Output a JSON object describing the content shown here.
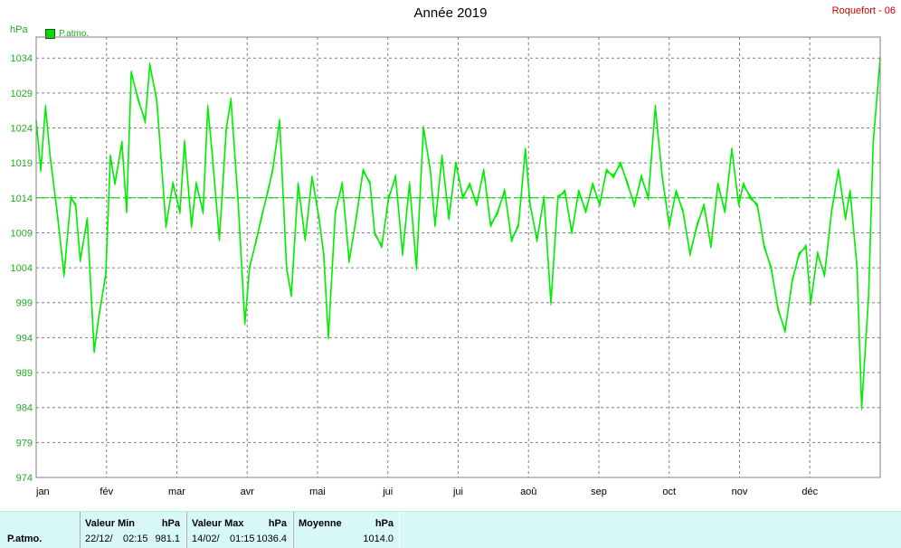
{
  "header": {
    "title": "Année 2019",
    "station": "Roquefort - 06",
    "unit": "hPa",
    "legend": "P.atmo."
  },
  "colors": {
    "series": "#00ee00",
    "mean": "#00cc00",
    "grid": "#808080",
    "axis_text": "#22aa22"
  },
  "footer": {
    "row_label": "P.atmo.",
    "min": {
      "header": "Valeur Min",
      "unit": "hPa",
      "date": "22/12/",
      "time": "02:15",
      "value": "981.1"
    },
    "max": {
      "header": "Valeur Max",
      "unit": "hPa",
      "date": "14/02/",
      "time": "01:15",
      "value": "1036.4"
    },
    "mean": {
      "header": "Moyenne",
      "unit": "hPa",
      "value": "1014.0"
    }
  },
  "chart_data": {
    "type": "line",
    "title": "Année 2019",
    "ylabel": "hPa",
    "ylim": [
      974,
      1037
    ],
    "yticks": [
      974,
      979,
      984,
      989,
      994,
      999,
      1004,
      1009,
      1014,
      1019,
      1024,
      1029,
      1034
    ],
    "xticks": [
      "jan",
      "fév",
      "mar",
      "avr",
      "mai",
      "jui",
      "jui",
      "aoû",
      "sep",
      "oct",
      "nov",
      "déc"
    ],
    "xlim": [
      1,
      365
    ],
    "mean": 1014.0,
    "grid": true,
    "legend_position": "top-left",
    "series": [
      {
        "name": "P.atmo.",
        "x": [
          1,
          3,
          5,
          7,
          10,
          13,
          16,
          18,
          20,
          23,
          26,
          28,
          31,
          33,
          35,
          38,
          40,
          42,
          45,
          48,
          50,
          53,
          55,
          57,
          60,
          63,
          65,
          68,
          70,
          73,
          75,
          77,
          80,
          83,
          85,
          88,
          91,
          93,
          96,
          98,
          101,
          103,
          106,
          109,
          111,
          114,
          117,
          120,
          123,
          125,
          127,
          130,
          133,
          136,
          139,
          142,
          145,
          147,
          150,
          153,
          156,
          159,
          162,
          165,
          168,
          171,
          173,
          176,
          179,
          182,
          185,
          188,
          191,
          194,
          197,
          200,
          203,
          206,
          209,
          212,
          214,
          217,
          220,
          223,
          226,
          229,
          232,
          235,
          238,
          241,
          244,
          247,
          250,
          253,
          256,
          259,
          262,
          265,
          268,
          271,
          274,
          277,
          280,
          283,
          286,
          289,
          292,
          295,
          298,
          301,
          304,
          306,
          309,
          312,
          315,
          318,
          321,
          324,
          327,
          330,
          333,
          335,
          338,
          341,
          344,
          347,
          350,
          352,
          355,
          357,
          360,
          362,
          365
        ],
        "values": [
          1025,
          1018,
          1027,
          1020,
          1012,
          1003,
          1014,
          1013,
          1005,
          1011,
          992,
          997,
          1003,
          1020,
          1016,
          1022,
          1012,
          1032,
          1028,
          1025,
          1033,
          1028,
          1019,
          1010,
          1016,
          1012,
          1022,
          1010,
          1016,
          1012,
          1027,
          1020,
          1008,
          1024,
          1028,
          1014,
          996,
          1004,
          1008,
          1011,
          1015,
          1018,
          1025,
          1004,
          1000,
          1016,
          1008,
          1017,
          1011,
          1006,
          994,
          1012,
          1016,
          1005,
          1011,
          1018,
          1016,
          1009,
          1007,
          1014,
          1017,
          1006,
          1016,
          1004,
          1024,
          1018,
          1010,
          1020,
          1011,
          1019,
          1014,
          1016,
          1013,
          1018,
          1010,
          1012,
          1015,
          1008,
          1010,
          1021,
          1013,
          1008,
          1014,
          999,
          1014,
          1015,
          1009,
          1015,
          1012,
          1016,
          1013,
          1018,
          1017,
          1019,
          1016,
          1013,
          1017,
          1014,
          1027,
          1017,
          1010,
          1015,
          1012,
          1006,
          1010,
          1013,
          1007,
          1016,
          1012,
          1021,
          1013,
          1016,
          1014,
          1013,
          1007,
          1004,
          998,
          995,
          1002,
          1006,
          1007,
          999,
          1006,
          1003,
          1012,
          1018,
          1011,
          1015,
          1004,
          984,
          1000,
          1022,
          1034
        ]
      }
    ]
  }
}
